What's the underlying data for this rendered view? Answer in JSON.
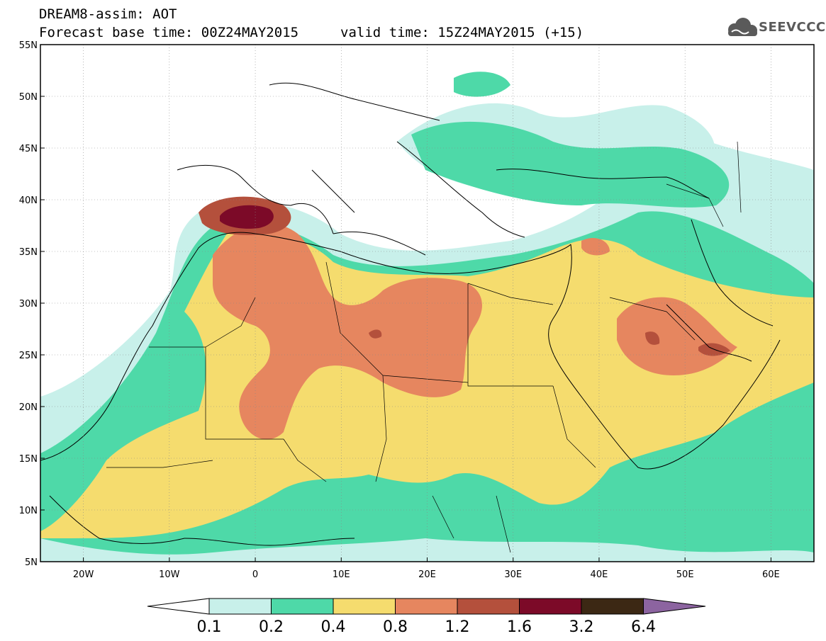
{
  "header": {
    "line1": "DREAM8-assim: AOT",
    "line2": "Forecast base time: 00Z24MAY2015",
    "line3": "valid time: 15Z24MAY2015 (+15)",
    "logo_text": "SEEVCCC",
    "logo_icon": "cloud-icon"
  },
  "map": {
    "lon_range": [
      -25,
      65
    ],
    "lat_range": [
      5,
      55
    ],
    "lat_ticks": [
      "5N",
      "10N",
      "15N",
      "20N",
      "25N",
      "30N",
      "35N",
      "40N",
      "45N",
      "50N",
      "55N"
    ],
    "lon_ticks": [
      "20W",
      "10W",
      "0",
      "10E",
      "20E",
      "30E",
      "40E",
      "50E",
      "60E"
    ],
    "grid": true
  },
  "colorbar": {
    "levels": [
      "0.1",
      "0.2",
      "0.4",
      "0.8",
      "1.2",
      "1.6",
      "3.2",
      "6.4"
    ],
    "colors": [
      "#c8f0ea",
      "#4ed9a8",
      "#f5dc6e",
      "#e6865f",
      "#b4503c",
      "#7c0a28",
      "#3c2814",
      "#8c64a0"
    ]
  }
}
